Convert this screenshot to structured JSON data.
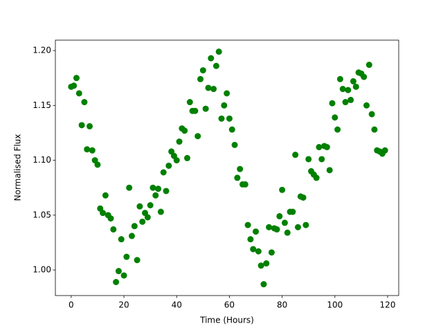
{
  "chart_data": {
    "type": "scatter",
    "x_label": "Time (Hours)",
    "y_label": "Normalised Flux",
    "color": "#008000",
    "x": [
      0,
      1,
      2,
      3,
      4,
      5,
      6,
      7,
      8,
      9,
      10,
      11,
      12,
      13,
      14,
      15,
      16,
      17,
      18,
      19,
      20,
      21,
      22,
      23,
      24,
      25,
      26,
      27,
      28,
      29,
      30,
      31,
      32,
      33,
      34,
      35,
      36,
      37,
      38,
      39,
      40,
      41,
      42,
      43,
      44,
      45,
      46,
      47,
      48,
      49,
      50,
      51,
      52,
      53,
      54,
      55,
      56,
      57,
      58,
      59,
      60,
      61,
      62,
      63,
      64,
      65,
      66,
      67,
      68,
      69,
      70,
      71,
      72,
      73,
      74,
      75,
      76,
      77,
      78,
      79,
      80,
      81,
      82,
      83,
      84,
      85,
      86,
      87,
      88,
      89,
      90,
      91,
      92,
      93,
      94,
      95,
      96,
      97,
      98,
      99,
      100,
      101,
      102,
      103,
      104,
      105,
      106,
      107,
      108,
      109,
      110,
      111,
      112,
      113,
      114,
      115,
      116,
      117,
      118,
      119
    ],
    "values": [
      1.167,
      1.168,
      1.175,
      1.161,
      1.132,
      1.153,
      1.11,
      1.131,
      1.109,
      1.1,
      1.096,
      1.056,
      1.052,
      1.068,
      1.05,
      1.047,
      1.037,
      0.989,
      0.999,
      1.028,
      0.995,
      1.012,
      1.075,
      1.031,
      1.04,
      1.009,
      1.058,
      1.044,
      1.052,
      1.048,
      1.059,
      1.075,
      1.068,
      1.074,
      1.053,
      1.089,
      1.072,
      1.095,
      1.108,
      1.104,
      1.1,
      1.117,
      1.129,
      1.127,
      1.102,
      1.153,
      1.145,
      1.145,
      1.122,
      1.174,
      1.182,
      1.147,
      1.166,
      1.193,
      1.165,
      1.186,
      1.199,
      1.138,
      1.15,
      1.161,
      1.138,
      1.128,
      1.114,
      1.084,
      1.092,
      1.078,
      1.078,
      1.041,
      1.028,
      1.019,
      1.035,
      1.017,
      1.004,
      0.987,
      1.006,
      1.039,
      1.016,
      1.038,
      1.037,
      1.049,
      1.073,
      1.043,
      1.034,
      1.053,
      1.053,
      1.105,
      1.039,
      1.067,
      1.066,
      1.041,
      1.101,
      1.09,
      1.087,
      1.084,
      1.112,
      1.101,
      1.113,
      1.112,
      1.091,
      1.152,
      1.139,
      1.128,
      1.174,
      1.165,
      1.153,
      1.164,
      1.155,
      1.172,
      1.167,
      1.18,
      1.179,
      1.176,
      1.15,
      1.187,
      1.142,
      1.128,
      1.109,
      1.108,
      1.106,
      1.109
    ],
    "xlim": [
      -6,
      124.2
    ],
    "ylim": [
      0.9767,
      1.2095
    ],
    "xticks": [
      0,
      20,
      40,
      60,
      80,
      100,
      120
    ],
    "yticks": [
      {
        "value": 1.0,
        "label": "1.00"
      },
      {
        "value": 1.05,
        "label": "1.05"
      },
      {
        "value": 1.1,
        "label": "1.10"
      },
      {
        "value": 1.15,
        "label": "1.15"
      },
      {
        "value": 1.2,
        "label": "1.20"
      }
    ]
  }
}
